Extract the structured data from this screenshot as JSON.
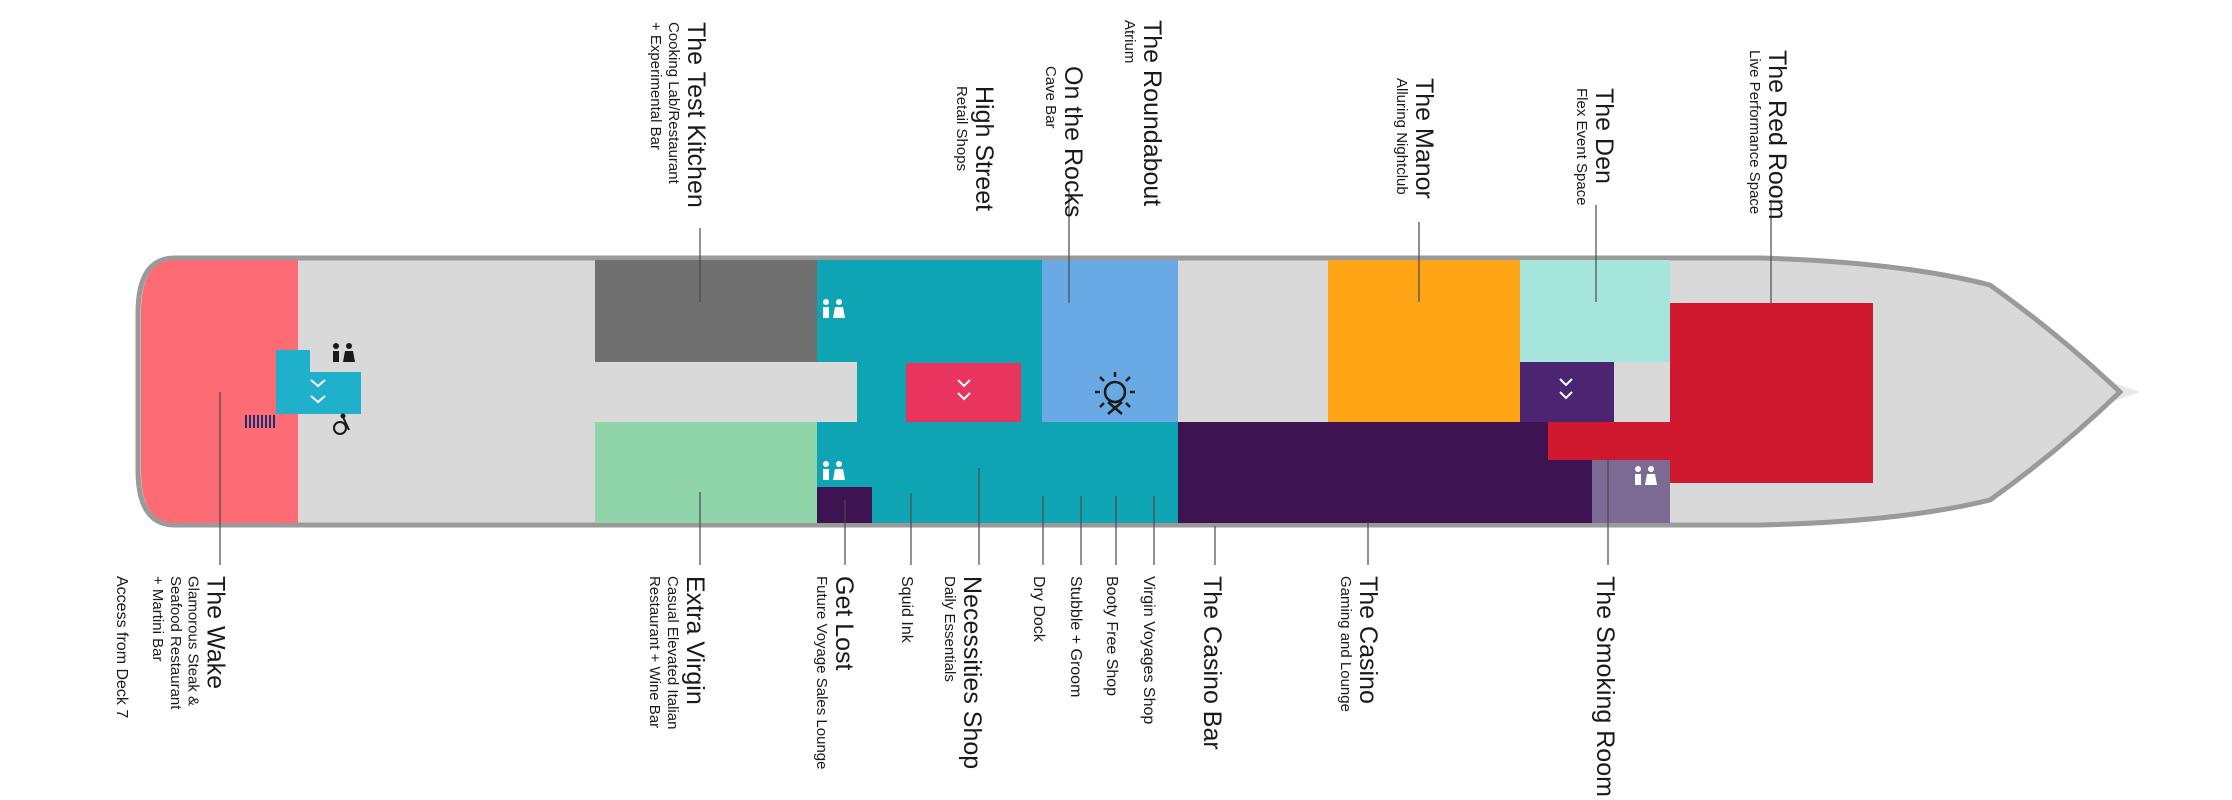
{
  "colors": {
    "hull": "#d9d9d9",
    "hull_edge": "#9a9a9a",
    "the_wake": "#fd6b74",
    "test_kitchen": "#6f6f6f",
    "extra_virgin": "#90d5aa",
    "teal": "#0ea4b4",
    "on_the_rocks": "#6aaae4",
    "manor": "#ffa415",
    "den": "#a6e5dc",
    "red_room": "#d0182f",
    "casino": "#3d1451",
    "den_elevator": "#4b2472",
    "smoking_room": "#7b6a94",
    "elevator_pink": "#e9345f",
    "elevator_blue": "#1fb1cc"
  },
  "icons": [
    "restroom-icon",
    "elevator-icon",
    "stairs-icon",
    "accessible-icon",
    "sun-deck-icon"
  ],
  "labels_top": {
    "test_kitchen": {
      "name": "The Test Kitchen",
      "sub": "Cooking Lab/Restaurant",
      "sub2": "+ Experimental Bar"
    },
    "high_street": {
      "name": "High Street",
      "sub": "Retail Shops"
    },
    "on_the_rocks": {
      "name": "On the Rocks",
      "sub": "Cave Bar"
    },
    "roundabout": {
      "name": "The Roundabout",
      "sub": "Atrium"
    },
    "manor": {
      "name": "The Manor",
      "sub": "Alluring Nightclub"
    },
    "den": {
      "name": "The Den",
      "sub": "Flex Event Space"
    },
    "red_room": {
      "name": "The Red Room",
      "sub": "Live Performance Space"
    }
  },
  "labels_bottom": {
    "access": {
      "name": "Access from Deck 7"
    },
    "wake": {
      "name": "The Wake",
      "sub": "Glamorous Steak &",
      "sub2": "Seafood Restaurant",
      "sub3": "+ Martini Bar"
    },
    "extra_virgin": {
      "name": "Extra Virgin",
      "sub": "Casual Elevated Italian",
      "sub2": "Restaurant + Wine Bar"
    },
    "get_lost": {
      "name": "Get Lost",
      "sub": "Future Voyage Sales Lounge"
    },
    "squid_ink": {
      "name": "Squid Ink"
    },
    "necessities": {
      "name": "Necessities Shop",
      "sub": "Daily Essentials"
    },
    "dry_dock": {
      "name": "Dry Dock"
    },
    "stubble": {
      "name": "Stubble + Groom"
    },
    "booty": {
      "name": "Booty Free Shop"
    },
    "vv_shop": {
      "name": "Virgin Voyages Shop"
    },
    "casino_bar": {
      "name": "The Casino Bar"
    },
    "casino": {
      "name": "The Casino",
      "sub": "Gaming and Lounge"
    },
    "smoking_room": {
      "name": "The Smoking Room"
    }
  }
}
